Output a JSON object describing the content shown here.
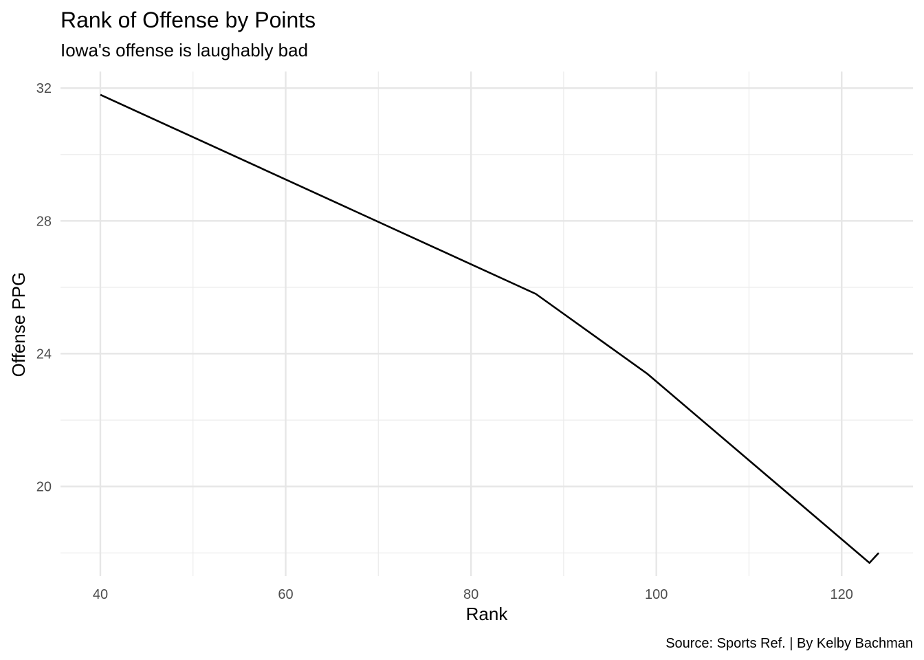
{
  "chart_data": {
    "type": "line",
    "title": "Rank of Offense by Points",
    "subtitle": "Iowa's offense is laughably bad",
    "caption": "Source: Sports Ref. | By Kelby Bachman",
    "xlabel": "Rank",
    "ylabel": "Offense PPG",
    "xlim": [
      35.7,
      127.7
    ],
    "ylim": [
      17.3,
      32.5
    ],
    "x_ticks": [
      40,
      60,
      80,
      100,
      120
    ],
    "y_ticks": [
      20,
      24,
      28,
      32
    ],
    "x_tick_labels": [
      "40",
      "60",
      "80",
      "100",
      "120"
    ],
    "y_tick_labels": [
      "20",
      "24",
      "28",
      "32"
    ],
    "grid": true,
    "legend": "none",
    "line_color": "#000000",
    "series": [
      {
        "x": [
          40,
          87,
          99,
          123,
          124
        ],
        "y": [
          31.8,
          25.8,
          23.4,
          17.7,
          18.0
        ]
      }
    ]
  }
}
